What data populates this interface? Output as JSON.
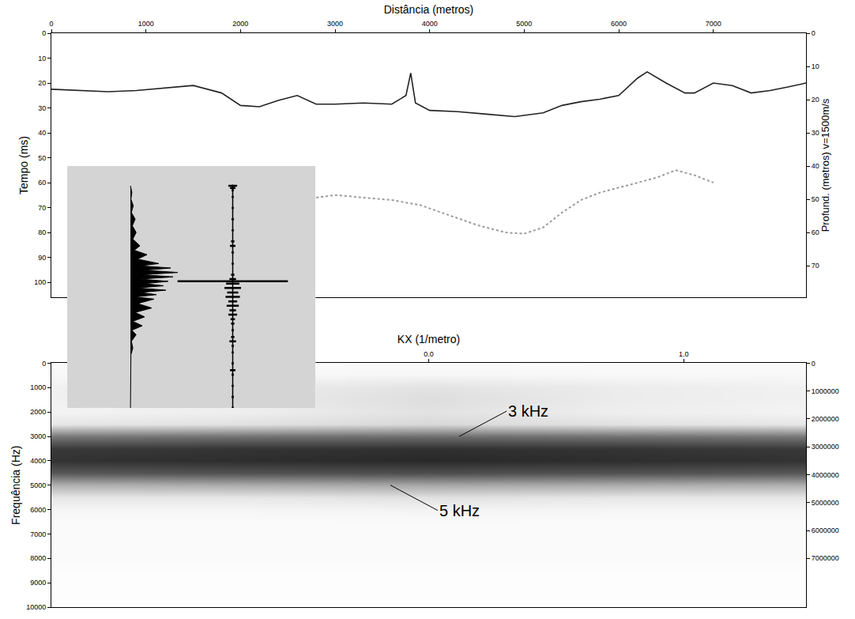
{
  "chart_data": [
    {
      "type": "line",
      "x_label": "Distância (metros)",
      "y_label": "Tempo (ms)",
      "y2_label": "Profund. (metros) v=1500m/s",
      "xlim": [
        0,
        7980
      ],
      "xticks": [
        0,
        1000,
        2000,
        3000,
        4000,
        5000,
        6000,
        7000
      ],
      "ylim": [
        0,
        106
      ],
      "yticks": [
        0,
        10,
        20,
        30,
        40,
        50,
        60,
        70,
        80,
        90,
        100
      ],
      "y2lim": [
        0,
        79.5
      ],
      "y2ticks": [
        0,
        10,
        20,
        30,
        40,
        50,
        60,
        70
      ],
      "grid": false,
      "series": [
        {
          "color": "#222222",
          "line_style": "solid",
          "x": [
            0,
            300,
            600,
            900,
            1200,
            1500,
            1800,
            2000,
            2200,
            2400,
            2600,
            2800,
            3000,
            3300,
            3600,
            3750,
            3800,
            3850,
            4000,
            4300,
            4600,
            4900,
            5200,
            5400,
            5600,
            5800,
            6000,
            6200,
            6300,
            6500,
            6700,
            6800,
            7000,
            7200,
            7400,
            7600,
            7800,
            7980
          ],
          "values": [
            22.5,
            23,
            23.5,
            23,
            22,
            21,
            24,
            29,
            29.5,
            27,
            25,
            28.5,
            28.5,
            28,
            28.5,
            25,
            16,
            28,
            31,
            31.5,
            32.5,
            33.5,
            32,
            29,
            27.5,
            26.5,
            25,
            18,
            15.5,
            20,
            24,
            24,
            20,
            21,
            24,
            23,
            21.5,
            20
          ]
        },
        {
          "color": "#9a9a9a",
          "line_style": "dotted",
          "x": [
            2800,
            3000,
            3300,
            3600,
            3900,
            4200,
            4500,
            4800,
            5000,
            5200,
            5400,
            5600,
            5800,
            6000,
            6200,
            6400,
            6600,
            6800,
            7000
          ],
          "values": [
            66,
            65,
            66,
            67,
            69,
            73,
            77,
            80,
            80.5,
            78,
            72,
            67,
            64,
            62,
            60,
            58,
            55,
            57,
            60
          ]
        }
      ]
    },
    {
      "type": "heatmap",
      "x_label": "KX (1/metro)",
      "y_label": "Frequência (Hz)",
      "xlim": [
        -1.48,
        1.48
      ],
      "xticks": [
        {
          "value": 0,
          "label": "0.0"
        },
        {
          "value": 1,
          "label": "1.0"
        }
      ],
      "ylim": [
        0,
        10000
      ],
      "yticks": [
        0,
        1000,
        2000,
        3000,
        4000,
        5000,
        6000,
        7000,
        8000,
        9000,
        10000
      ],
      "y2lim": [
        0,
        8750000
      ],
      "y2ticks": [
        0,
        1000000,
        2000000,
        3000000,
        4000000,
        5000000,
        6000000,
        7000000
      ],
      "grid": false,
      "x": [
        -1.5,
        -0.75,
        0,
        0.75,
        1.5
      ],
      "y": [
        0,
        500,
        1000,
        1500,
        2000,
        2500,
        3000,
        3500,
        4000,
        4500,
        5000,
        5500,
        6000,
        6500,
        7000,
        7500,
        8000,
        8500,
        9000,
        9500,
        10000
      ],
      "cells": [
        [
          0.02,
          0.02,
          0.02,
          0.02,
          0.02
        ],
        [
          0.03,
          0.03,
          0.04,
          0.03,
          0.03
        ],
        [
          0.06,
          0.08,
          0.12,
          0.08,
          0.06
        ],
        [
          0.06,
          0.08,
          0.14,
          0.08,
          0.06
        ],
        [
          0.05,
          0.07,
          0.12,
          0.07,
          0.05
        ],
        [
          0.1,
          0.12,
          0.16,
          0.12,
          0.1
        ],
        [
          0.58,
          0.6,
          0.62,
          0.6,
          0.58
        ],
        [
          0.83,
          0.85,
          0.87,
          0.85,
          0.83
        ],
        [
          0.86,
          0.88,
          0.9,
          0.88,
          0.86
        ],
        [
          0.7,
          0.72,
          0.74,
          0.72,
          0.7
        ],
        [
          0.33,
          0.35,
          0.37,
          0.35,
          0.33
        ],
        [
          0.1,
          0.1,
          0.12,
          0.1,
          0.1
        ],
        [
          0.04,
          0.04,
          0.05,
          0.04,
          0.04
        ],
        [
          0.02,
          0.02,
          0.02,
          0.02,
          0.02
        ],
        [
          0.02,
          0.02,
          0.02,
          0.02,
          0.02
        ],
        [
          0.02,
          0.02,
          0.02,
          0.02,
          0.02
        ],
        [
          0.02,
          0.02,
          0.02,
          0.02,
          0.02
        ],
        [
          0.01,
          0.01,
          0.01,
          0.01,
          0.01
        ],
        [
          0.01,
          0.01,
          0.01,
          0.01,
          0.01
        ],
        [
          0.01,
          0.01,
          0.01,
          0.01,
          0.01
        ],
        [
          0.01,
          0.01,
          0.01,
          0.01,
          0.01
        ]
      ],
      "zlim": [
        0,
        1
      ],
      "annotations": [
        {
          "text": "3 kHz",
          "x": 0.12,
          "y": 3000
        },
        {
          "text": "5 kHz",
          "x": -0.15,
          "y": 5000
        }
      ]
    },
    {
      "type": "line",
      "tick_labels": false,
      "color": "#000000",
      "xlim": [
        -1.34,
        3.92
      ],
      "ylim": [
        -9,
        100
      ],
      "y": [
        0,
        3,
        6,
        9,
        12,
        15,
        18,
        21,
        24,
        27,
        29,
        31,
        33,
        35,
        36,
        37,
        38,
        39,
        40,
        41,
        42,
        43,
        44,
        45,
        46,
        47,
        48,
        49,
        50,
        51,
        53,
        55,
        57,
        59,
        61,
        63,
        65,
        67,
        70,
        73,
        76,
        80,
        85,
        90,
        95,
        100
      ],
      "values": [
        0,
        0.03,
        0.01,
        0.06,
        0.02,
        0.1,
        0.04,
        0.12,
        0.05,
        0.2,
        0.08,
        0.35,
        0.15,
        0.6,
        0.2,
        0.85,
        0.3,
        1.0,
        0.25,
        0.9,
        0.2,
        0.8,
        0.3,
        0.7,
        0.15,
        0.75,
        0.2,
        0.55,
        0.1,
        0.5,
        0.15,
        0.45,
        0.1,
        0.3,
        0.05,
        0.25,
        0.03,
        0.12,
        0.02,
        0.05,
        0.01,
        0.01,
        0,
        0,
        0,
        0
      ]
    },
    {
      "type": "errorbar",
      "tick_labels": false,
      "color": "#000000",
      "xlim": [
        -3.0,
        1.5
      ],
      "ylim": [
        -9,
        100
      ],
      "y": [
        0,
        1,
        2,
        5,
        10,
        15,
        20,
        25,
        27,
        30,
        35,
        40,
        42,
        43,
        44,
        46,
        48,
        50,
        52,
        54,
        56,
        58,
        60,
        62,
        65,
        68,
        70,
        72,
        75,
        80,
        83,
        85,
        90,
        95,
        100
      ],
      "values": [
        0.08,
        0.05,
        0.02,
        0.01,
        0.01,
        0.02,
        0.01,
        0.03,
        0.05,
        0.02,
        0.01,
        0.03,
        0.06,
        1.0,
        0.12,
        0.15,
        0.1,
        0.13,
        0.08,
        0.11,
        0.06,
        0.08,
        0.04,
        0.03,
        0.02,
        0.03,
        0.06,
        0.02,
        0.01,
        0.02,
        0.05,
        0.02,
        0.01,
        0.02,
        0.01
      ]
    }
  ]
}
